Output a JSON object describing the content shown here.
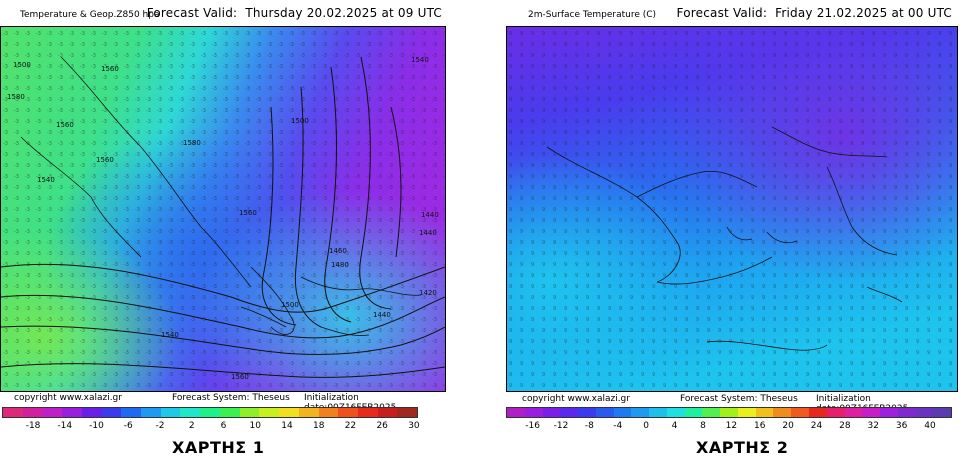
{
  "map1": {
    "title": "Temperature & Geop.Z850 hpa",
    "forecast_label": "Forecast Valid:",
    "forecast_time": "Thursday 20.02.2025 at 09 UTC",
    "copyright": "copyright www.xalazi.gr",
    "forecast_system": "Forecast System: Theseus",
    "initialization": "Initialization date:00Z16FEB2025",
    "scale_ticks": [
      "-18",
      "-14",
      "-10",
      "-6",
      "-2",
      "2",
      "6",
      "10",
      "14",
      "18",
      "22",
      "26",
      "30"
    ],
    "scale_colors": [
      "#e0287a",
      "#d41ea0",
      "#c01ec8",
      "#9a1ee0",
      "#6a1ee8",
      "#3a3aef",
      "#1e6af0",
      "#1e9af0",
      "#1ec8e8",
      "#1ee8c8",
      "#1ef08a",
      "#3cf050",
      "#8cf02a",
      "#c8f01e",
      "#f0e01e",
      "#f0b41e",
      "#f0821e",
      "#f0501e",
      "#e82a1e",
      "#c81e1e",
      "#a0281e"
    ],
    "contour_labels": [
      "1500",
      "1560",
      "1560",
      "1580",
      "1560",
      "1540",
      "1560",
      "1580",
      "1500",
      "1460",
      "1440",
      "1440",
      "1420",
      "1440",
      "1480",
      "1500",
      "1540",
      "1560",
      "1540"
    ],
    "caption": "ΧΑΡΤΗΣ 1"
  },
  "map2": {
    "title": "2m-Surface Temperature (C)",
    "forecast_label": "Forecast Valid:",
    "forecast_time": "Friday 21.02.2025 at 00 UTC",
    "copyright": "copyright www.xalazi.gr",
    "forecast_system": "Forecast System: Theseus",
    "initialization": "Initialization date:00Z16FEB2025",
    "scale_ticks": [
      "-16",
      "-12",
      "-8",
      "-4",
      "0",
      "4",
      "8",
      "12",
      "16",
      "20",
      "24",
      "28",
      "32",
      "36",
      "40"
    ],
    "scale_colors": [
      "#b01ec8",
      "#9a1ee0",
      "#7a1ee8",
      "#5a28ee",
      "#3a3aef",
      "#2a5af0",
      "#1e7af0",
      "#1e9af0",
      "#1ec0ea",
      "#1ee0e0",
      "#1ef0a0",
      "#50f050",
      "#a0f01e",
      "#e8f01e",
      "#f0c01e",
      "#f08c1e",
      "#f05a1e",
      "#e8281e",
      "#e81e6a",
      "#e01ea0",
      "#c81ec8",
      "#a01ee0",
      "#8028d0",
      "#6a32c0",
      "#5a3cb0"
    ],
    "caption": "ΧΑΡΤΗΣ 2"
  },
  "colors": {
    "map1_land_green": "#52e26a",
    "map1_cyan": "#2ee0d0",
    "map1_blue": "#3a64ef",
    "map1_purple": "#8a2ee8",
    "map2_cyan": "#1ec4ee",
    "map2_blue": "#2a6cef",
    "map2_purple": "#6a2ee6"
  }
}
